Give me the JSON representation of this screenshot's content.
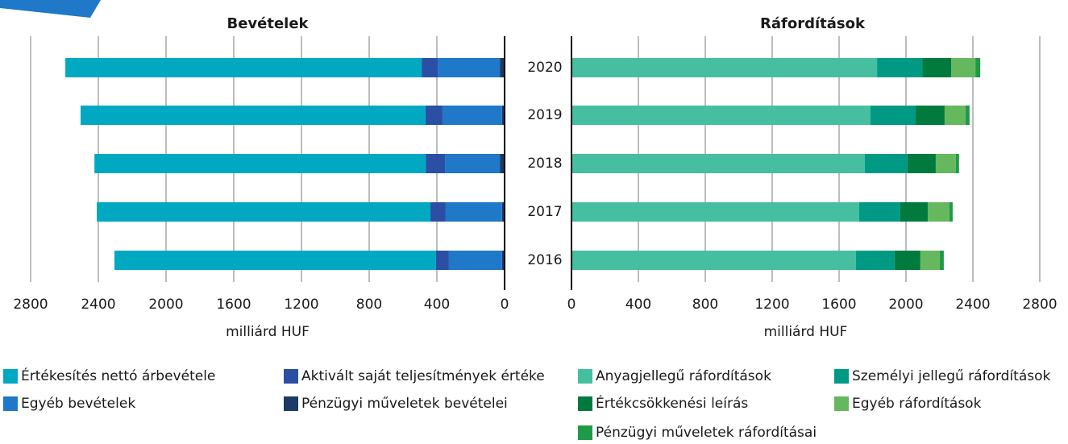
{
  "chart_data": [
    {
      "type": "bar",
      "orientation": "horizontal",
      "stacked": true,
      "x_reversed": true,
      "title": "Bevételek",
      "xlabel": "milliárd HUF",
      "xlim": [
        0,
        2800
      ],
      "xticks": [
        0,
        400,
        800,
        1200,
        1600,
        2000,
        2400,
        2800
      ],
      "grid": true,
      "series": [
        {
          "name": "Értékesítés nettó árbevétele",
          "color": "#00a9c1",
          "values": [
            2105,
            2038,
            1957,
            1971,
            1900
          ]
        },
        {
          "name": "Aktivált saját teljesítmények értéke",
          "color": "#2a4fa4",
          "values": [
            95,
            100,
            114,
            90,
            76
          ]
        },
        {
          "name": "Egyéb bevételek",
          "color": "#1f78c8",
          "values": [
            367,
            352,
            324,
            333,
            314
          ]
        },
        {
          "name": "Pénzügyi műveletek bevételei",
          "color": "#1b3a66",
          "values": [
            28,
            15,
            28,
            15,
            15
          ]
        }
      ]
    },
    {
      "type": "bar",
      "orientation": "horizontal",
      "stacked": true,
      "x_reversed": false,
      "title": "Ráfordítások",
      "xlabel": "milliárd HUF",
      "categories": [
        "2020",
        "2019",
        "2018",
        "2017",
        "2016"
      ],
      "xlim": [
        0,
        2800
      ],
      "xticks": [
        0,
        400,
        800,
        1200,
        1600,
        2000,
        2400,
        2800
      ],
      "grid": true,
      "series": [
        {
          "name": "Anyagjellegű ráfordítások",
          "color": "#45bf9f",
          "values": [
            1827,
            1788,
            1754,
            1720,
            1701
          ]
        },
        {
          "name": "Személyi jellegű ráfordítások",
          "color": "#009a84",
          "values": [
            270,
            270,
            255,
            246,
            231
          ]
        },
        {
          "name": "Értékcsökkenési leírás",
          "color": "#007a3d",
          "values": [
            173,
            173,
            169,
            164,
            154
          ]
        },
        {
          "name": "Egyéb ráfordítások",
          "color": "#66b85e",
          "values": [
            145,
            125,
            120,
            130,
            116
          ]
        },
        {
          "name": "Pénzügyi műveletek ráfordításai",
          "color": "#1f9a47",
          "values": [
            29,
            24,
            19,
            19,
            24
          ]
        }
      ]
    }
  ]
}
